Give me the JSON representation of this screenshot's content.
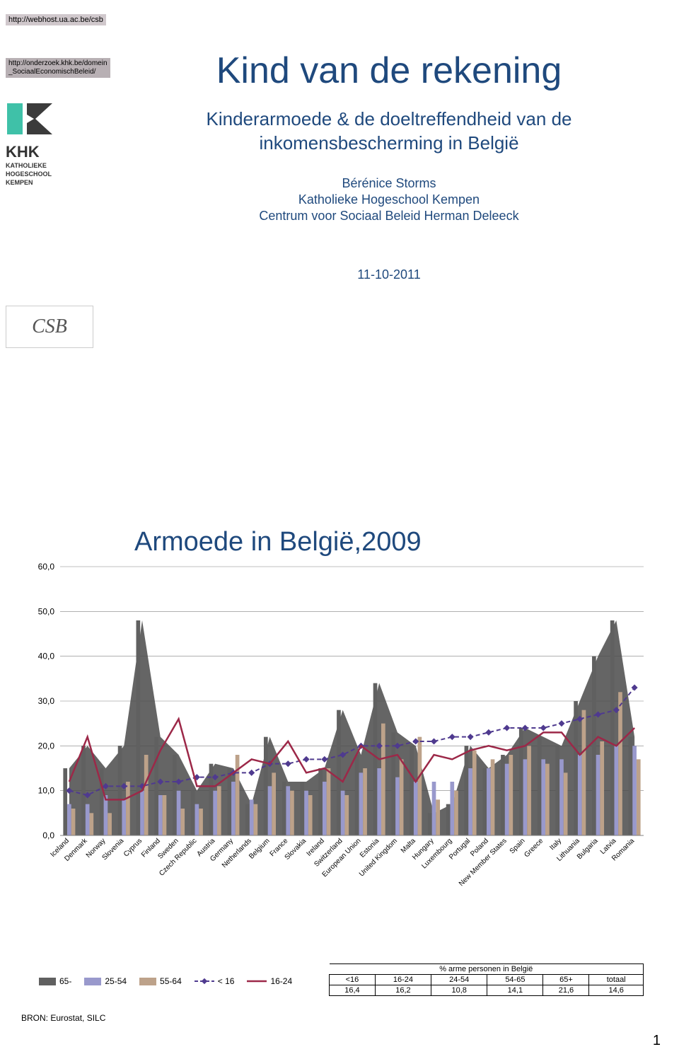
{
  "links": {
    "link1": "http://webhost.ua.ac.be/csb",
    "link2_line1": "http://onderzoek.khk.be/domein",
    "link2_line2": "_SociaalEconomischBeleid/"
  },
  "logos": {
    "khk_name": "KHK",
    "khk_sub1": "KATHOLIEKE",
    "khk_sub2": "HOGESCHOOL",
    "khk_sub3": "KEMPEN",
    "csb_text": "CSB"
  },
  "title": "Kind van de rekening",
  "subtitle": "Kinderarmoede & de doeltreffendheid van de inkomensbescherming in België",
  "authors_line1": "Bérénice Storms",
  "authors_line2": "Katholieke Hogeschool Kempen",
  "authors_line3": "Centrum voor Sociaal Beleid Herman Deleeck",
  "date": "11-10-2011",
  "chart": {
    "title": "Armoede in België,2009",
    "y_ticks": [
      0,
      10,
      20,
      30,
      40,
      50,
      60
    ],
    "y_labels": [
      "0,0",
      "10,0",
      "20,0",
      "30,0",
      "40,0",
      "50,0",
      "60,0"
    ],
    "ymax": 60,
    "colors": {
      "bar_65plus": "#606060",
      "bar_25_54": "#9999cc",
      "bar_55_64": "#bda28a",
      "line_u16": "#4f3a8f",
      "line_16_24": "#9c2848",
      "area_fill": "#4a4a4a",
      "grid": "#808080",
      "axis_text": "#000000"
    },
    "categories": [
      "Iceland",
      "Denmark",
      "Norway",
      "Slovenia",
      "Cyprus",
      "Finland",
      "Sweden",
      "Czech Republic",
      "Austria",
      "Germany",
      "Netherlands",
      "Belgium",
      "France",
      "Slovakia",
      "Ireland",
      "Switzerland",
      "European Union",
      "Estonia",
      "United Kingdom",
      "Malta",
      "Hungary",
      "Luxembourg",
      "Portugal",
      "Poland",
      "New Member States",
      "Spain",
      "Greece",
      "Italy",
      "Lithuania",
      "Bulgaria",
      "Latvia",
      "Romania"
    ],
    "series": {
      "area_65plus_bg": [
        15,
        20,
        15,
        20,
        48,
        22,
        18,
        10,
        16,
        15,
        7,
        22,
        12,
        12,
        15,
        28,
        18,
        34,
        23,
        20,
        5,
        7,
        20,
        15,
        18,
        24,
        22,
        20,
        30,
        40,
        48,
        22
      ],
      "bar_65plus": [
        15,
        20,
        15,
        20,
        48,
        22,
        18,
        10,
        16,
        15,
        7,
        22,
        12,
        12,
        15,
        28,
        18,
        34,
        23,
        20,
        5,
        7,
        20,
        15,
        18,
        24,
        22,
        20,
        30,
        40,
        48,
        22
      ],
      "bar_25_54": [
        7,
        7,
        9,
        8,
        10,
        9,
        10,
        7,
        10,
        12,
        8,
        11,
        11,
        10,
        12,
        10,
        14,
        15,
        13,
        12,
        12,
        12,
        15,
        15,
        16,
        17,
        17,
        17,
        18,
        18,
        20,
        20
      ],
      "bar_55_64": [
        6,
        5,
        5,
        12,
        18,
        9,
        6,
        6,
        11,
        18,
        7,
        14,
        10,
        9,
        15,
        9,
        15,
        25,
        17,
        22,
        8,
        10,
        19,
        17,
        18,
        20,
        16,
        14,
        28,
        21,
        32,
        17
      ],
      "line_u16": [
        10,
        9,
        11,
        11,
        11,
        12,
        12,
        13,
        13,
        14,
        14,
        16,
        16,
        17,
        17,
        18,
        20,
        20,
        20,
        21,
        21,
        22,
        22,
        23,
        24,
        24,
        24,
        25,
        26,
        27,
        28,
        33
      ],
      "line_16_24": [
        12,
        22,
        8,
        8,
        10,
        19,
        26,
        11,
        11,
        14,
        17,
        16,
        21,
        14,
        15,
        12,
        20,
        17,
        18,
        12,
        18,
        17,
        19,
        20,
        19,
        20,
        23,
        23,
        18,
        22,
        20,
        24
      ]
    }
  },
  "legend": {
    "i0": "65-",
    "i1": "25-54",
    "i2": "55-64",
    "i3": "< 16",
    "i4": "16-24"
  },
  "table": {
    "caption": "% arme personen in België",
    "headers": [
      "<16",
      "16-24",
      "24-54",
      "54-65",
      "65+",
      "totaal"
    ],
    "row": [
      "16,4",
      "16,2",
      "10,8",
      "14,1",
      "21,6",
      "14,6"
    ]
  },
  "source": "BRON: Eurostat, SILC",
  "page": "1"
}
